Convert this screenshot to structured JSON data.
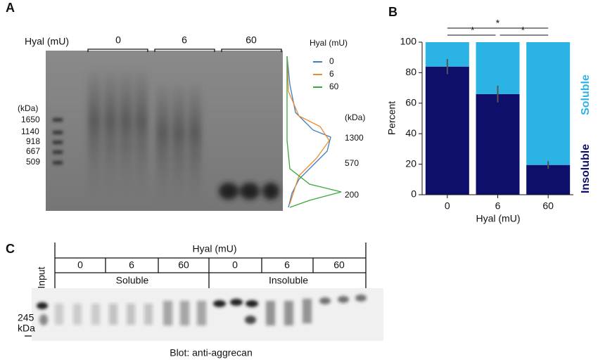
{
  "panel_a": {
    "label": "A",
    "axis_label": "Hyal (mU)",
    "lanes": [
      "0",
      "6",
      "60"
    ],
    "ladder_unit": "(kDa)",
    "ladder": [
      "1650",
      "1140",
      "918",
      "667",
      "509"
    ],
    "legend_title": "Hyal (mU)",
    "legend": [
      {
        "name": "0",
        "color": "#3a7fc1"
      },
      {
        "name": "6",
        "color": "#f08a30"
      },
      {
        "name": "60",
        "color": "#3aa83a"
      }
    ],
    "profile_unit": "(kDa)",
    "profile_marks": [
      "1300",
      "570",
      "200"
    ]
  },
  "chart_data": {
    "type": "bar",
    "label": "B",
    "x_label": "Hyal (mU)",
    "y_label": "Percent",
    "categories": [
      "0",
      "6",
      "60"
    ],
    "series": [
      {
        "name": "Insoluble",
        "color": "#0d0f6b",
        "values": [
          84,
          66,
          19.5
        ],
        "errors": [
          5,
          5.5,
          2.5
        ]
      },
      {
        "name": "Soluble",
        "color": "#2bb3e6",
        "values": [
          16,
          34,
          80.5
        ]
      }
    ],
    "stacked": true,
    "ylim": [
      0,
      100
    ],
    "yticks": [
      0,
      20,
      40,
      60,
      80,
      100
    ],
    "annotations": [
      "*",
      "*",
      "*"
    ]
  },
  "panel_c": {
    "label": "C",
    "axis_label": "Hyal (mU)",
    "input": "Input",
    "lanes": [
      "0",
      "6",
      "60",
      "0",
      "6",
      "60"
    ],
    "groups": [
      "Soluble",
      "Insoluble"
    ],
    "marker": "245",
    "marker_unit": "kDa",
    "caption": "Blot: anti-aggrecan"
  }
}
